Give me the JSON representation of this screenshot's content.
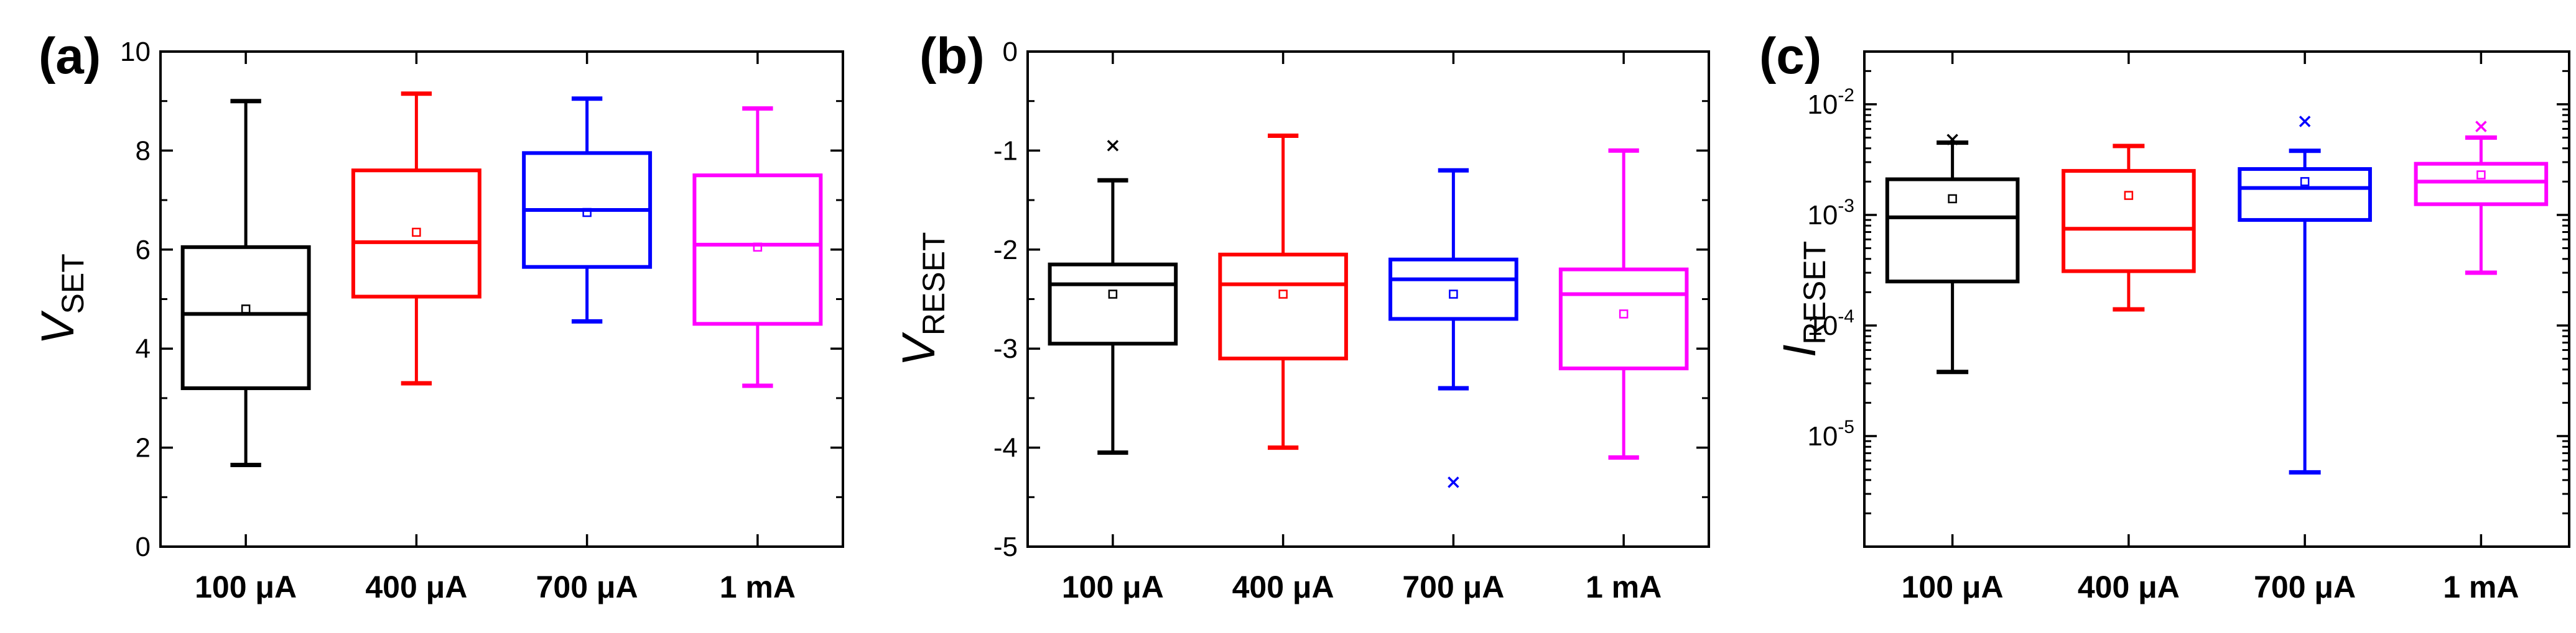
{
  "chart_data": [
    {
      "type": "box",
      "panel_label": "(a)",
      "ylabel": {
        "main": "V",
        "sub": "SET"
      },
      "ylim": [
        0,
        10
      ],
      "yscale": "linear",
      "yticks": [
        0,
        2,
        4,
        6,
        8,
        10
      ],
      "ytick_labels": [
        "0",
        "2",
        "4",
        "6",
        "8",
        "10"
      ],
      "categories": [
        "100 μA",
        "400 μA",
        "700 μA",
        "1 mA"
      ],
      "colors": [
        "#000000",
        "#ff0000",
        "#0000ff",
        "#ff00ff"
      ],
      "boxes": [
        {
          "whisker_low": 1.65,
          "q1": 3.2,
          "median": 4.7,
          "q3": 6.05,
          "whisker_high": 9.0,
          "mean": 4.8,
          "outliers": []
        },
        {
          "whisker_low": 3.3,
          "q1": 5.05,
          "median": 6.15,
          "q3": 7.6,
          "whisker_high": 9.15,
          "mean": 6.35,
          "outliers": []
        },
        {
          "whisker_low": 4.55,
          "q1": 5.65,
          "median": 6.8,
          "q3": 7.95,
          "whisker_high": 9.05,
          "mean": 6.75,
          "outliers": []
        },
        {
          "whisker_low": 3.25,
          "q1": 4.5,
          "median": 6.1,
          "q3": 7.5,
          "whisker_high": 8.85,
          "mean": 6.05,
          "outliers": []
        }
      ]
    },
    {
      "type": "box",
      "panel_label": "(b)",
      "ylabel": {
        "main": "V",
        "sub": "RESET"
      },
      "ylim": [
        -5,
        0
      ],
      "yscale": "linear",
      "yticks": [
        -5,
        -4,
        -3,
        -2,
        -1,
        0
      ],
      "ytick_labels": [
        "-5",
        "-4",
        "-3",
        "-2",
        "-1",
        "0"
      ],
      "categories": [
        "100 μA",
        "400 μA",
        "700 μA",
        "1 mA"
      ],
      "colors": [
        "#000000",
        "#ff0000",
        "#0000ff",
        "#ff00ff"
      ],
      "boxes": [
        {
          "whisker_low": -4.05,
          "q1": -2.95,
          "median": -2.35,
          "q3": -2.15,
          "whisker_high": -1.3,
          "mean": -2.45,
          "outliers": [
            -0.95
          ]
        },
        {
          "whisker_low": -4.0,
          "q1": -3.1,
          "median": -2.35,
          "q3": -2.05,
          "whisker_high": -0.85,
          "mean": -2.45,
          "outliers": []
        },
        {
          "whisker_low": -3.4,
          "q1": -2.7,
          "median": -2.3,
          "q3": -2.1,
          "whisker_high": -1.2,
          "mean": -2.45,
          "outliers": [
            -4.35
          ]
        },
        {
          "whisker_low": -4.1,
          "q1": -3.2,
          "median": -2.45,
          "q3": -2.2,
          "whisker_high": -1.0,
          "mean": -2.65,
          "outliers": []
        }
      ]
    },
    {
      "type": "box",
      "panel_label": "(c)",
      "ylabel": {
        "main": "I",
        "sub": "RESET"
      },
      "ylim": [
        1e-06,
        0.03
      ],
      "yscale": "log",
      "yticks": [
        1e-05,
        0.0001,
        0.001,
        0.01
      ],
      "ytick_labels": [
        {
          "base": "10",
          "exp": "-5"
        },
        {
          "base": "10",
          "exp": "-4"
        },
        {
          "base": "10",
          "exp": "-3"
        },
        {
          "base": "10",
          "exp": "-2"
        }
      ],
      "categories": [
        "100 μA",
        "400 μA",
        "700 μA",
        "1 mA"
      ],
      "colors": [
        "#000000",
        "#ff0000",
        "#0000ff",
        "#ff00ff"
      ],
      "boxes": [
        {
          "whisker_low": 3.8e-05,
          "q1": 0.00025,
          "median": 0.00095,
          "q3": 0.0021,
          "whisker_high": 0.0045,
          "mean": 0.0014,
          "outliers": [
            0.0048
          ]
        },
        {
          "whisker_low": 0.00014,
          "q1": 0.00031,
          "median": 0.00075,
          "q3": 0.0025,
          "whisker_high": 0.0042,
          "mean": 0.0015,
          "outliers": []
        },
        {
          "whisker_low": 4.7e-06,
          "q1": 0.0009,
          "median": 0.00175,
          "q3": 0.0026,
          "whisker_high": 0.0038,
          "mean": 0.002,
          "outliers": [
            0.007
          ]
        },
        {
          "whisker_low": 0.0003,
          "q1": 0.00125,
          "median": 0.002,
          "q3": 0.0029,
          "whisker_high": 0.005,
          "mean": 0.0023,
          "outliers": [
            0.0063
          ]
        }
      ]
    }
  ]
}
